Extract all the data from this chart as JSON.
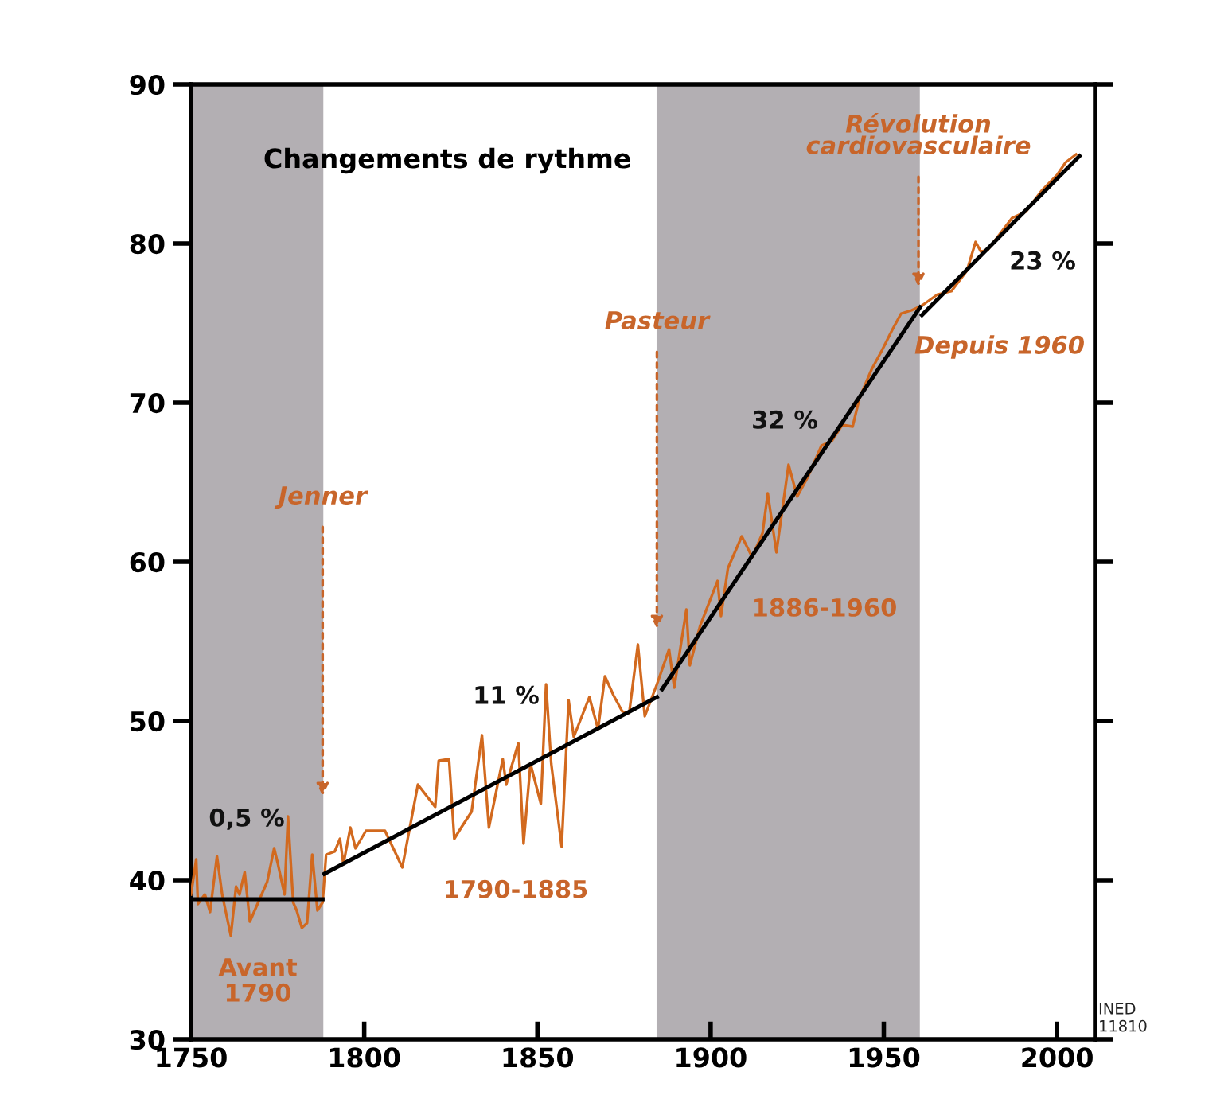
{
  "chart_data": {
    "type": "line",
    "title": "Changements de rythme",
    "xlim": [
      1750,
      2011
    ],
    "ylim": [
      30,
      90
    ],
    "xticks": [
      1750,
      1800,
      1850,
      1900,
      1950,
      2000
    ],
    "yticks": [
      30,
      40,
      50,
      60,
      70,
      80,
      90
    ],
    "grid": false,
    "legend": false,
    "marker": "none",
    "line_style": "solid",
    "series": [
      {
        "color": "#d2691e",
        "x": [
          1750,
          1751.5,
          1752,
          1754,
          1755.5,
          1757.5,
          1759,
          1761.5,
          1763,
          1764,
          1765.5,
          1767,
          1772,
          1774,
          1775,
          1777,
          1778,
          1779.5,
          1780.5,
          1782,
          1783.5,
          1785,
          1786.5,
          1788,
          1789,
          1791.5,
          1793,
          1794,
          1796,
          1797.5,
          1800.5,
          1806,
          1811,
          1815.5,
          1820.5,
          1821.5,
          1824.5,
          1826,
          1828,
          1831,
          1834,
          1836,
          1840,
          1841,
          1844.5,
          1846,
          1848,
          1851,
          1852.5,
          1854,
          1857,
          1859,
          1860.5,
          1865,
          1867.5,
          1869.5,
          1872,
          1874.5,
          1876.5,
          1879,
          1881,
          1884.5,
          1888,
          1889.5,
          1893,
          1894,
          1897,
          1902,
          1903,
          1905,
          1909,
          1912,
          1915,
          1916.5,
          1919,
          1922.5,
          1925,
          1928,
          1932,
          1935,
          1938,
          1941,
          1943,
          1946.5,
          1949.5,
          1952.5,
          1955,
          1958,
          1961,
          1965.5,
          1969.5,
          1974,
          1976.5,
          1978,
          1980,
          1983.5,
          1987,
          1991,
          1995.5,
          2000,
          2002.5,
          2005.5
        ],
        "values": [
          39.1,
          41.3,
          38.5,
          39.1,
          38,
          41.5,
          39.1,
          36.5,
          39.6,
          39.1,
          40.5,
          37.4,
          39.9,
          42,
          41.1,
          39.1,
          44,
          38.6,
          38.1,
          37,
          37.3,
          41.6,
          38.1,
          38.6,
          41.6,
          41.8,
          42.6,
          41,
          43.3,
          42,
          43.1,
          43.1,
          40.8,
          46,
          44.6,
          47.5,
          47.6,
          42.6,
          43.3,
          44.3,
          49.1,
          43.3,
          47.6,
          46,
          48.6,
          42.3,
          47.3,
          44.8,
          52.3,
          47.3,
          42.1,
          51.3,
          49,
          51.5,
          49.5,
          52.8,
          51.6,
          50.6,
          50.5,
          54.8,
          50.3,
          52.3,
          54.5,
          52.1,
          57,
          53.5,
          56,
          58.8,
          56.6,
          59.6,
          61.6,
          60.3,
          61.8,
          64.3,
          60.6,
          66.1,
          64.1,
          65.3,
          67.3,
          67.6,
          68.6,
          68.5,
          70.3,
          72.1,
          73.3,
          74.6,
          75.6,
          75.8,
          76.1,
          76.8,
          77,
          78.3,
          80.1,
          79.5,
          79.6,
          80.6,
          81.6,
          82,
          83.3,
          84.3,
          85.1,
          85.6
        ]
      },
      {
        "color": "#000000",
        "x": [
          1750,
          1788
        ],
        "values": [
          38.8,
          38.8
        ]
      },
      {
        "color": "#000000",
        "x": [
          1788.5,
          1884.5
        ],
        "values": [
          40.4,
          51.5
        ]
      },
      {
        "color": "#000000",
        "x": [
          1886,
          1960.5
        ],
        "values": [
          52,
          76
        ]
      },
      {
        "color": "#000000",
        "x": [
          1961,
          2006.5
        ],
        "values": [
          75.5,
          85.5
        ]
      }
    ],
    "bands": [
      {
        "axis": "x",
        "from": 1750,
        "to": 1788.2,
        "color": "#b3afb3"
      },
      {
        "axis": "x",
        "from": 1884.4,
        "to": 1960.4,
        "color": "#b3afb3"
      }
    ],
    "annotations": [
      {
        "text": "Jenner",
        "x": 1788,
        "y": 45.3
      },
      {
        "text": "Pasteur",
        "x": 1884.5,
        "y": 55.8
      },
      {
        "text": "Révolution\ncardiovasculaire",
        "x": 1960,
        "y": 77.3
      },
      "0,5 %",
      "Avant\n1790",
      "11 %",
      "1790-1885",
      "32 %",
      "1886-1960",
      "23 %",
      "Depuis 1960",
      "INED\n11810"
    ]
  }
}
